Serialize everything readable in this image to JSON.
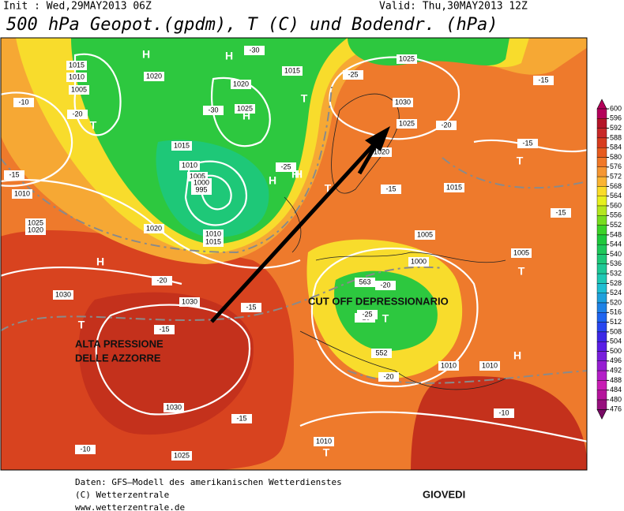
{
  "header": {
    "init": "Init : Wed,29MAY2013 06Z",
    "valid": "Valid: Thu,30MAY2013 12Z",
    "title": "500 hPa Geopot.(gpdm), T (C) und Bodendr. (hPa)"
  },
  "colorbar": {
    "ticks": [
      600,
      596,
      592,
      588,
      584,
      580,
      576,
      572,
      568,
      564,
      560,
      556,
      552,
      548,
      544,
      540,
      536,
      532,
      528,
      524,
      520,
      516,
      512,
      508,
      504,
      500,
      496,
      492,
      488,
      484,
      480,
      476
    ],
    "colors": [
      "#b4005a",
      "#b41428",
      "#c82828",
      "#d73c1e",
      "#e65a1e",
      "#f07828",
      "#f59632",
      "#fab432",
      "#fadc28",
      "#e6f01e",
      "#b4e61e",
      "#78dc1e",
      "#3cd228",
      "#1ec83c",
      "#1ec85a",
      "#1ec878",
      "#1ec896",
      "#1ec8b4",
      "#1ebed2",
      "#1ea0dc",
      "#1e82e6",
      "#1e64f0",
      "#2846f0",
      "#3c28e6",
      "#5a1ee6",
      "#781edc",
      "#961ed2",
      "#b41ec8",
      "#c81eb4",
      "#b4149b",
      "#96107d",
      "#780a64"
    ]
  },
  "map_labels": [
    "1015",
    "1010",
    "1005",
    "1020",
    "-20",
    "T",
    "H",
    "H",
    "-30",
    "1015",
    "1020",
    "1025",
    "H",
    "T",
    "-30",
    "1015",
    "1010",
    "1005",
    "1000",
    "995",
    "1010",
    "1015",
    "1020",
    "H",
    "-25",
    "T",
    "1025",
    "1030",
    "1025",
    "-20",
    "-25",
    "T",
    "1015",
    "-10",
    "-15",
    "H",
    "1010",
    "-15",
    "1025",
    "1020",
    "H",
    "-20",
    "1030",
    "1030",
    "-15",
    "T",
    "-15",
    "1030",
    "-15",
    "-10",
    "1025",
    "1010",
    "T",
    "1005",
    "1000",
    "-20",
    "-25",
    "T",
    "H",
    "-15",
    "1005",
    "1010",
    "H",
    "1010",
    "-15",
    "T",
    "-10",
    "-15",
    "-20",
    "563",
    "552",
    "1020",
    "-25"
  ],
  "annotations": [
    "ALTA PRESSIONE",
    "DELLE AZZORRE",
    "CUT OFF DEPRESSIONARIO"
  ],
  "footer": {
    "lines": [
      "Daten: GFS—Modell des amerikanischen Wetterdienstes",
      "(C) Wetterzentrale",
      "www.wetterzentrale.de"
    ],
    "day": "GIOVEDI"
  }
}
